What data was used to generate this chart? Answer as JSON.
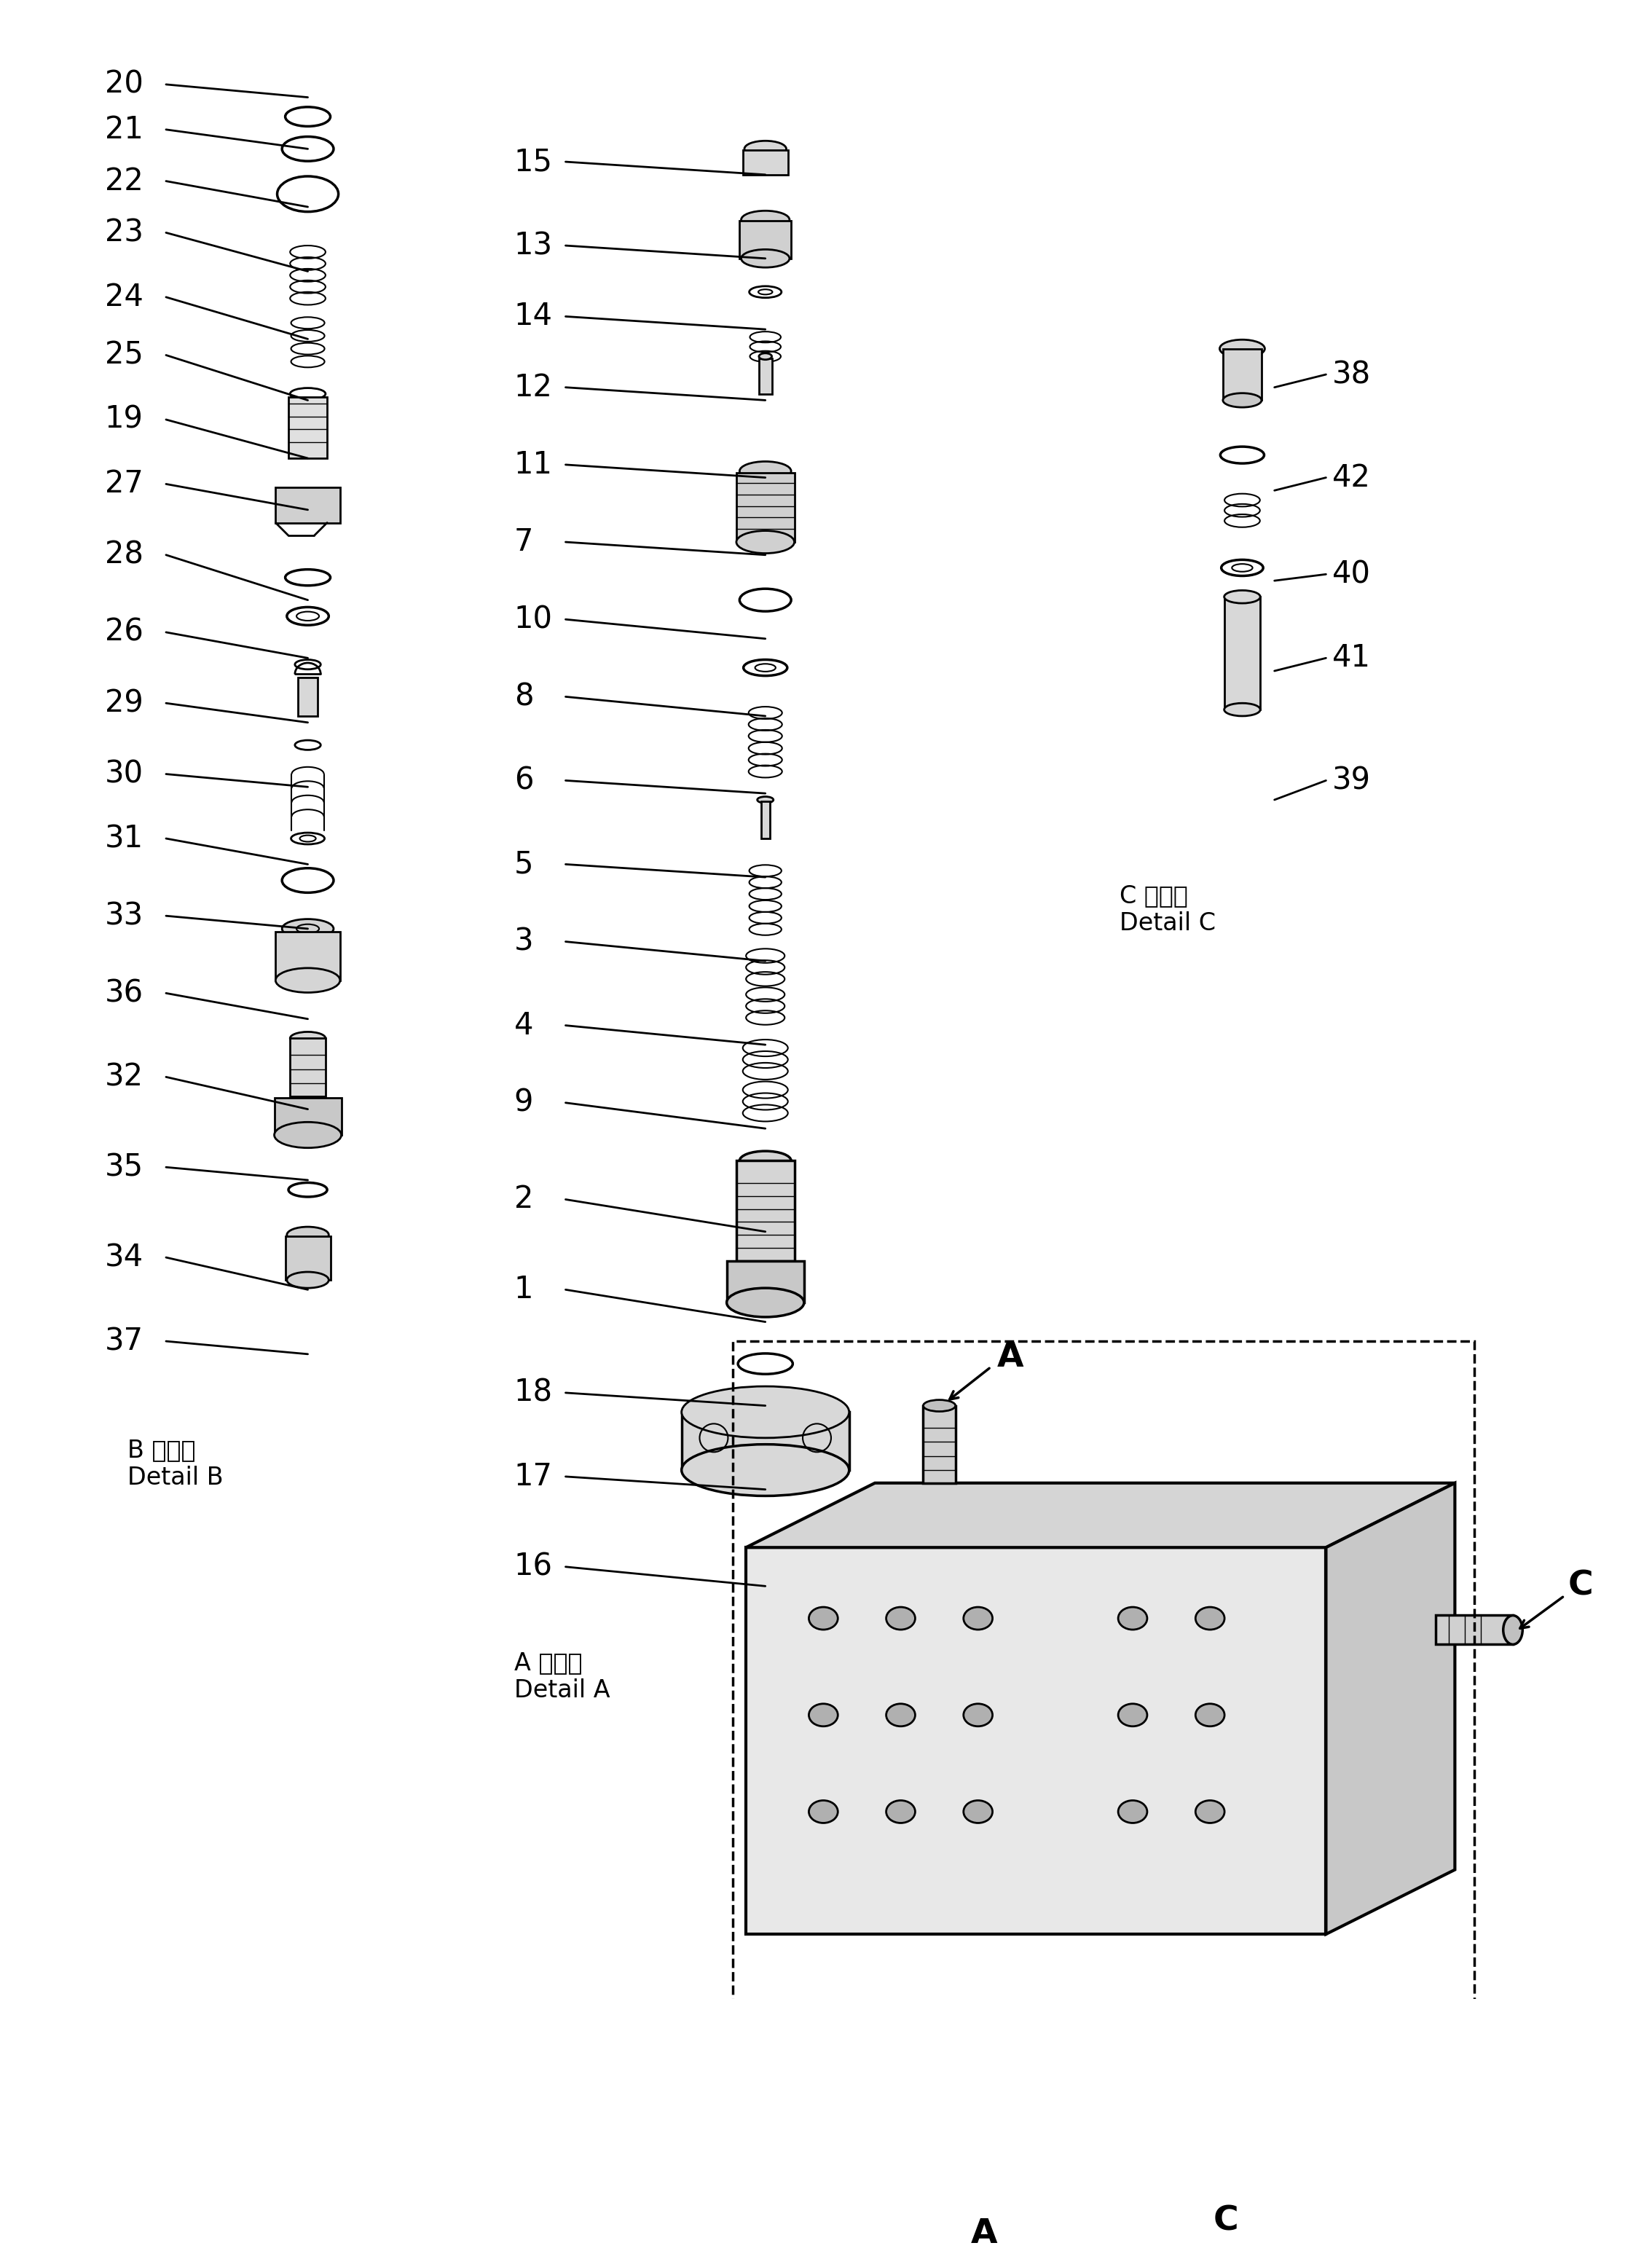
{
  "bg_color": "#ffffff",
  "fig_width": 22.68,
  "fig_height": 31.01,
  "section_A_label": "A 詳細\nDetail A",
  "section_B_label": "B 詳細\nDetail B",
  "section_C_label": "C 詳細\nDetail C",
  "partA_numbers": [
    "15",
    "13",
    "14",
    "12",
    "11",
    "7",
    "10",
    "8",
    "6",
    "5",
    "3",
    "4",
    "9",
    "2",
    "1",
    "18",
    "17",
    "16"
  ],
  "partB_numbers": [
    "20",
    "21",
    "22",
    "23",
    "24",
    "25",
    "19",
    "27",
    "28",
    "26",
    "29",
    "30",
    "31",
    "33",
    "36",
    "32",
    "35",
    "34",
    "37"
  ],
  "partC_numbers": [
    "38",
    "42",
    "40",
    "41",
    "39"
  ]
}
